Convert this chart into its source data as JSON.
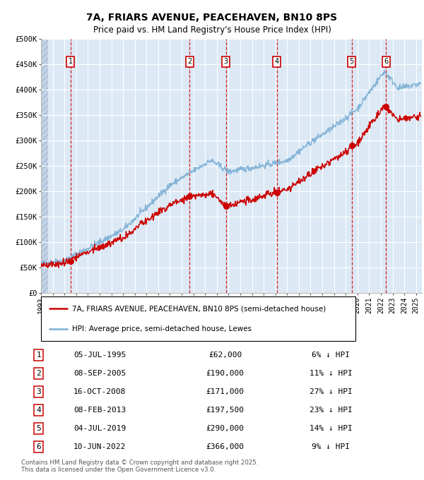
{
  "title_line1": "7A, FRIARS AVENUE, PEACEHAVEN, BN10 8PS",
  "title_line2": "Price paid vs. HM Land Registry's House Price Index (HPI)",
  "ylim": [
    0,
    500000
  ],
  "yticks": [
    0,
    50000,
    100000,
    150000,
    200000,
    250000,
    300000,
    350000,
    400000,
    450000,
    500000
  ],
  "ytick_labels": [
    "£0",
    "£50K",
    "£100K",
    "£150K",
    "£200K",
    "£250K",
    "£300K",
    "£350K",
    "£400K",
    "£450K",
    "£500K"
  ],
  "background_color": "#dce9f5",
  "hpi_color": "#7bafd4",
  "price_color": "#cc0000",
  "sale_dates_x": [
    1995.51,
    2005.69,
    2008.79,
    2013.11,
    2019.51,
    2022.44
  ],
  "sale_prices_y": [
    62000,
    190000,
    171000,
    197500,
    290000,
    366000
  ],
  "sale_labels": [
    "1",
    "2",
    "3",
    "4",
    "5",
    "6"
  ],
  "sale_dates_str": [
    "05-JUL-1995",
    "08-SEP-2005",
    "16-OCT-2008",
    "08-FEB-2013",
    "04-JUL-2019",
    "10-JUN-2022"
  ],
  "sale_prices_str": [
    "£62,000",
    "£190,000",
    "£171,000",
    "£197,500",
    "£290,000",
    "£366,000"
  ],
  "sale_pct_str": [
    "6%",
    "11%",
    "27%",
    "23%",
    "14%",
    "9%"
  ],
  "legend_line1": "7A, FRIARS AVENUE, PEACEHAVEN, BN10 8PS (semi-detached house)",
  "legend_line2": "HPI: Average price, semi-detached house, Lewes",
  "footnote": "Contains HM Land Registry data © Crown copyright and database right 2025.\nThis data is licensed under the Open Government Licence v3.0.",
  "xmin": 1993.0,
  "xmax": 2025.5
}
